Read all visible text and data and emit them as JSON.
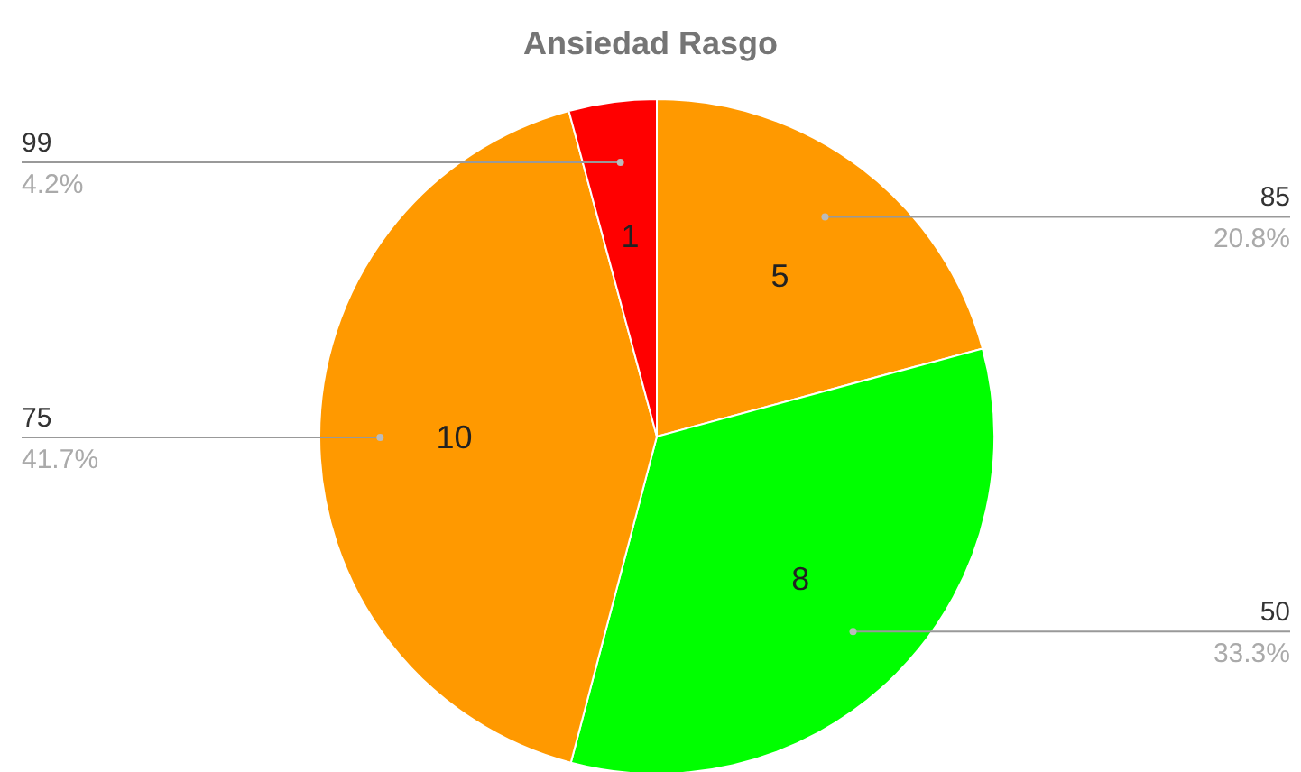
{
  "chart_data": {
    "type": "pie",
    "title": "Ansiedad Rasgo",
    "categories": [
      "85",
      "50",
      "75",
      "99"
    ],
    "values": [
      20.8,
      33.3,
      41.7,
      4.2
    ],
    "colors": [
      "#ff9900",
      "#00ff00",
      "#ff9900",
      "#ff0000"
    ],
    "value_labels": [
      "20.8%",
      "33.3%",
      "41.7%",
      "4.2%"
    ],
    "annotations": [
      {
        "text": "5",
        "x": "85"
      },
      {
        "text": "8",
        "x": "50"
      },
      {
        "text": "10",
        "x": "75"
      },
      {
        "text": "1",
        "x": "99"
      }
    ],
    "legend": false
  }
}
